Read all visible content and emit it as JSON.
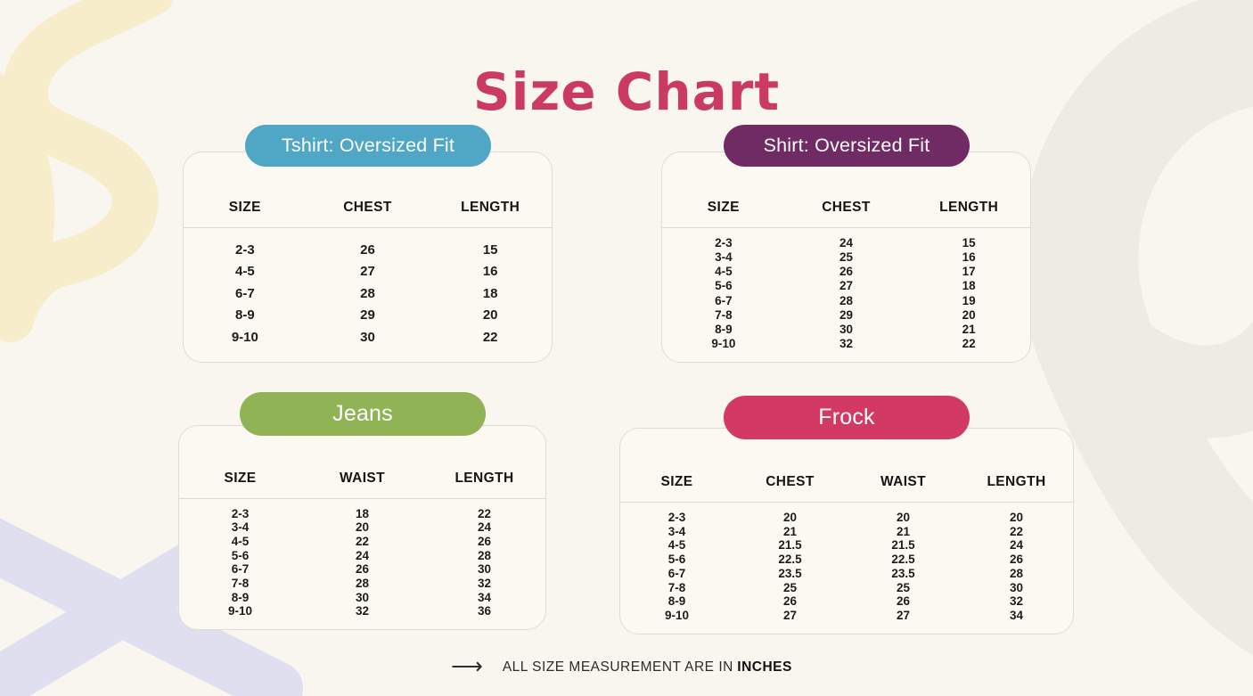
{
  "title": "Size Chart",
  "colors": {
    "background": "#F8F6EE",
    "card_background": "#FBF9F1",
    "card_border": "#DFDDD4",
    "divider": "#DCDAD1",
    "title_text": "#CB3A63",
    "body_text": "#1C1C1C",
    "pill_text": "#FFFFFF",
    "tshirt_accent": "#4FA6C5",
    "shirt_accent": "#702A64",
    "jeans_accent": "#90B355",
    "frock_accent": "#D23A63",
    "decor_yellow": "#F7EDCA",
    "decor_lavender": "#DCDCF1",
    "decor_gray": "#EDEBE4"
  },
  "chart_data": [
    {
      "type": "table",
      "title": "Tshirt: Oversized Fit",
      "accent": "#4FA6C5",
      "columns": [
        "SIZE",
        "CHEST",
        "LENGTH"
      ],
      "rows": [
        [
          "2-3",
          "26",
          "15"
        ],
        [
          "4-5",
          "27",
          "16"
        ],
        [
          "6-7",
          "28",
          "18"
        ],
        [
          "8-9",
          "29",
          "20"
        ],
        [
          "9-10",
          "30",
          "22"
        ]
      ]
    },
    {
      "type": "table",
      "title": "Shirt: Oversized Fit",
      "accent": "#702A64",
      "columns": [
        "SIZE",
        "CHEST",
        "LENGTH"
      ],
      "rows": [
        [
          "2-3",
          "24",
          "15"
        ],
        [
          "3-4",
          "25",
          "16"
        ],
        [
          "4-5",
          "26",
          "17"
        ],
        [
          "5-6",
          "27",
          "18"
        ],
        [
          "6-7",
          "28",
          "19"
        ],
        [
          "7-8",
          "29",
          "20"
        ],
        [
          "8-9",
          "30",
          "21"
        ],
        [
          "9-10",
          "32",
          "22"
        ]
      ]
    },
    {
      "type": "table",
      "title": "Jeans",
      "accent": "#90B355",
      "columns": [
        "SIZE",
        "WAIST",
        "LENGTH"
      ],
      "rows": [
        [
          "2-3",
          "18",
          "22"
        ],
        [
          "3-4",
          "20",
          "24"
        ],
        [
          "4-5",
          "22",
          "26"
        ],
        [
          "5-6",
          "24",
          "28"
        ],
        [
          "6-7",
          "26",
          "30"
        ],
        [
          "7-8",
          "28",
          "32"
        ],
        [
          "8-9",
          "30",
          "34"
        ],
        [
          "9-10",
          "32",
          "36"
        ]
      ]
    },
    {
      "type": "table",
      "title": "Frock",
      "accent": "#D23A63",
      "columns": [
        "SIZE",
        "CHEST",
        "WAIST",
        "LENGTH"
      ],
      "rows": [
        [
          "2-3",
          "20",
          "20",
          "20"
        ],
        [
          "3-4",
          "21",
          "21",
          "22"
        ],
        [
          "4-5",
          "21.5",
          "21.5",
          "24"
        ],
        [
          "5-6",
          "22.5",
          "22.5",
          "26"
        ],
        [
          "6-7",
          "23.5",
          "23.5",
          "28"
        ],
        [
          "7-8",
          "25",
          "25",
          "30"
        ],
        [
          "8-9",
          "26",
          "26",
          "32"
        ],
        [
          "9-10",
          "27",
          "27",
          "34"
        ]
      ]
    }
  ],
  "footer": {
    "arrow": "⟶",
    "text": "ALL SIZE MEASUREMENT ARE IN",
    "emphasis": "INCHES"
  }
}
